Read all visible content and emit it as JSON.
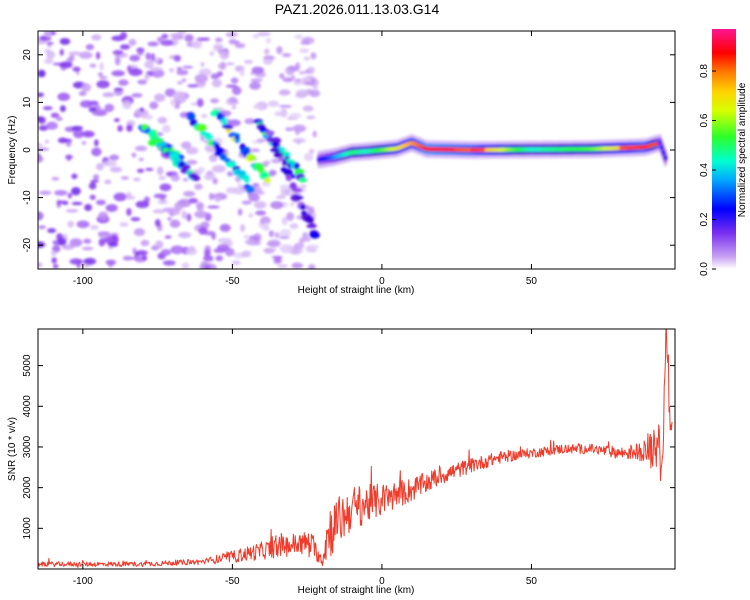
{
  "page_title": "PAZ1.2026.011.13.03.G14",
  "colors": {
    "snr_line": "#f03a2a",
    "frame": "#000000",
    "colormap": [
      "#f2ecfb",
      "#c9a2f4",
      "#8d3ff0",
      "#3b00d6",
      "#0000ff",
      "#00a5ff",
      "#00ffd0",
      "#2bff2b",
      "#d8ff00",
      "#ffd200",
      "#ff7a00",
      "#ff0000",
      "#ff1493"
    ]
  },
  "chart_data": [
    {
      "type": "heatmap",
      "title": "PAZ1.2026.011.13.03.G14",
      "xlabel": "Height of straight line (km)",
      "ylabel": "Frequency (Hz)",
      "xlim": [
        -115,
        98
      ],
      "ylim": [
        -25,
        25
      ],
      "xticks": [
        -100,
        -50,
        0,
        50
      ],
      "xtick_labels": [
        "-100",
        "-50",
        "0",
        "50"
      ],
      "yticks": [
        -20,
        -10,
        0,
        10,
        20
      ],
      "ytick_labels": [
        "-20",
        "-10",
        "0",
        "10",
        "20"
      ],
      "colorbar": {
        "label": "Normalized spectral amplitude",
        "range": [
          0,
          0.97
        ],
        "ticks": [
          0.0,
          0.2,
          0.4,
          0.6,
          0.8
        ],
        "tick_labels": [
          "0.0",
          "0.2",
          "0.4",
          "0.6",
          "0.8"
        ]
      },
      "main_ridge": {
        "x": [
          -21,
          -16,
          -10,
          -5,
          0,
          5,
          10,
          15,
          30,
          50,
          70,
          88,
          93,
          95
        ],
        "freq": [
          -2,
          -1.5,
          -0.5,
          -0.3,
          0,
          0.3,
          1.5,
          0.2,
          0,
          0.1,
          0.2,
          0.6,
          1.5,
          -2
        ],
        "amplitude": [
          0.3,
          0.4,
          0.55,
          0.5,
          0.6,
          0.7,
          0.8,
          0.9,
          0.85,
          0.5,
          0.6,
          0.85,
          0.35,
          0.3
        ]
      },
      "diagonal_tracks": [
        {
          "x": [
            -80,
            -68
          ],
          "freq": [
            5,
            -2
          ],
          "amplitude": 0.3
        },
        {
          "x": [
            -76,
            -62
          ],
          "freq": [
            2,
            -6
          ],
          "amplitude": 0.3
        },
        {
          "x": [
            -64,
            -44
          ],
          "freq": [
            7,
            -8
          ],
          "amplitude": 0.35
        },
        {
          "x": [
            -56,
            -38
          ],
          "freq": [
            8,
            -6
          ],
          "amplitude": 0.35
        },
        {
          "x": [
            -42,
            -26
          ],
          "freq": [
            6,
            -6
          ],
          "amplitude": 0.3
        },
        {
          "x": [
            -38,
            -22
          ],
          "freq": [
            4,
            -18
          ],
          "amplitude": 0.15
        }
      ],
      "noise_region_x": [
        -115,
        -22
      ],
      "noise_amplitude": 0.15
    },
    {
      "type": "line",
      "xlabel": "Height of straight line (km)",
      "ylabel": "SNR (10 * v/v)",
      "xlim": [
        -115,
        98
      ],
      "ylim": [
        0,
        5900
      ],
      "xticks": [
        -100,
        -50,
        0,
        50
      ],
      "xtick_labels": [
        "-100",
        "-50",
        "0",
        "50"
      ],
      "yticks": [
        1000,
        2000,
        3000,
        4000,
        5000
      ],
      "ytick_labels": [
        "1000",
        "2000",
        "3000",
        "4000",
        "5000"
      ],
      "series": [
        {
          "name": "SNR",
          "trend_x": [
            -115,
            -80,
            -60,
            -50,
            -40,
            -30,
            -24,
            -20,
            -18,
            -10,
            0,
            10,
            20,
            30,
            40,
            50,
            60,
            70,
            80,
            88,
            90,
            92,
            93,
            94,
            95,
            96,
            97
          ],
          "trend_y": [
            120,
            120,
            180,
            300,
            450,
            600,
            650,
            200,
            900,
            1500,
            1700,
            1950,
            2300,
            2550,
            2750,
            2850,
            2950,
            2950,
            2850,
            2900,
            3000,
            3200,
            2600,
            3400,
            5900,
            4000,
            3300
          ],
          "noise_amplitude": [
            60,
            60,
            70,
            150,
            220,
            280,
            300,
            150,
            700,
            550,
            400,
            300,
            220,
            180,
            150,
            120,
            120,
            120,
            150,
            250,
            600,
            700,
            700,
            600,
            300,
            500,
            400
          ],
          "samples": 1050
        }
      ]
    }
  ]
}
